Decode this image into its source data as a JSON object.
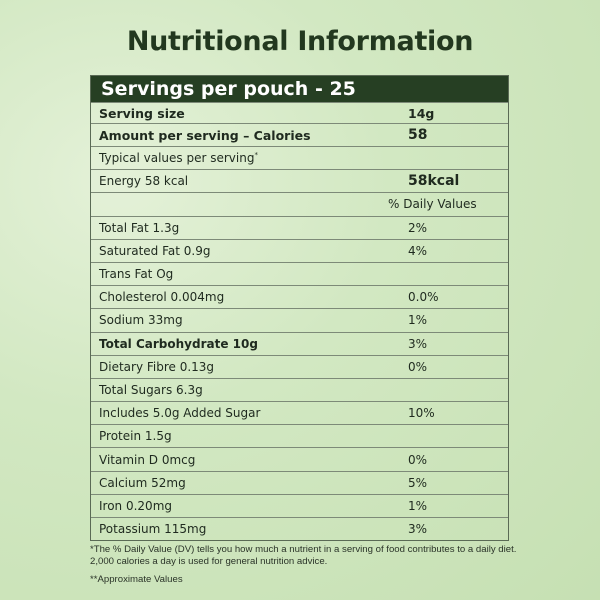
{
  "title": "Nutritional Information",
  "header": "Servings per pouch - 25",
  "serving_size": {
    "label": "Serving size",
    "value": "14g"
  },
  "calories": {
    "label": "Amount per serving – Calories",
    "value": "58"
  },
  "typical": "Typical values per serving",
  "typical_mark": "*",
  "energy": {
    "label": "Energy 58 kcal",
    "value": "58kcal"
  },
  "dv_header": "% Daily Values",
  "rows": [
    {
      "label": "Total Fat 1.3g",
      "value": "2%"
    },
    {
      "label": "Saturated Fat 0.9g",
      "value": "4%"
    },
    {
      "label": "Trans Fat Og",
      "value": ""
    },
    {
      "label": "Cholesterol 0.004mg",
      "value": "0.0%"
    },
    {
      "label": "Sodium 33mg",
      "value": "1%"
    },
    {
      "label": "Total Carbohydrate 10g",
      "value": "3%",
      "bold": true
    },
    {
      "label": "Dietary Fibre 0.13g",
      "value": "0%"
    },
    {
      "label": "Total Sugars 6.3g",
      "value": ""
    },
    {
      "label": "Includes 5.0g Added Sugar",
      "value": "10%"
    },
    {
      "label": "Protein 1.5g",
      "value": ""
    },
    {
      "label": "Vitamin D 0mcg",
      "value": "0%"
    },
    {
      "label": "Calcium 52mg",
      "value": "5%"
    },
    {
      "label": "Iron 0.20mg",
      "value": "1%"
    },
    {
      "label": "Potassium 115mg",
      "value": "3%"
    }
  ],
  "footnote": "*The % Daily Value (DV) tells you how much a nutrient in a serving of food contributes to a daily diet. 2,000 calories a day is used for general nutrition advice.",
  "footnote2": "**Approximate Values",
  "colors": {
    "header_bg": "#263f23",
    "title": "#22381f",
    "background": "#d2e8c2"
  }
}
